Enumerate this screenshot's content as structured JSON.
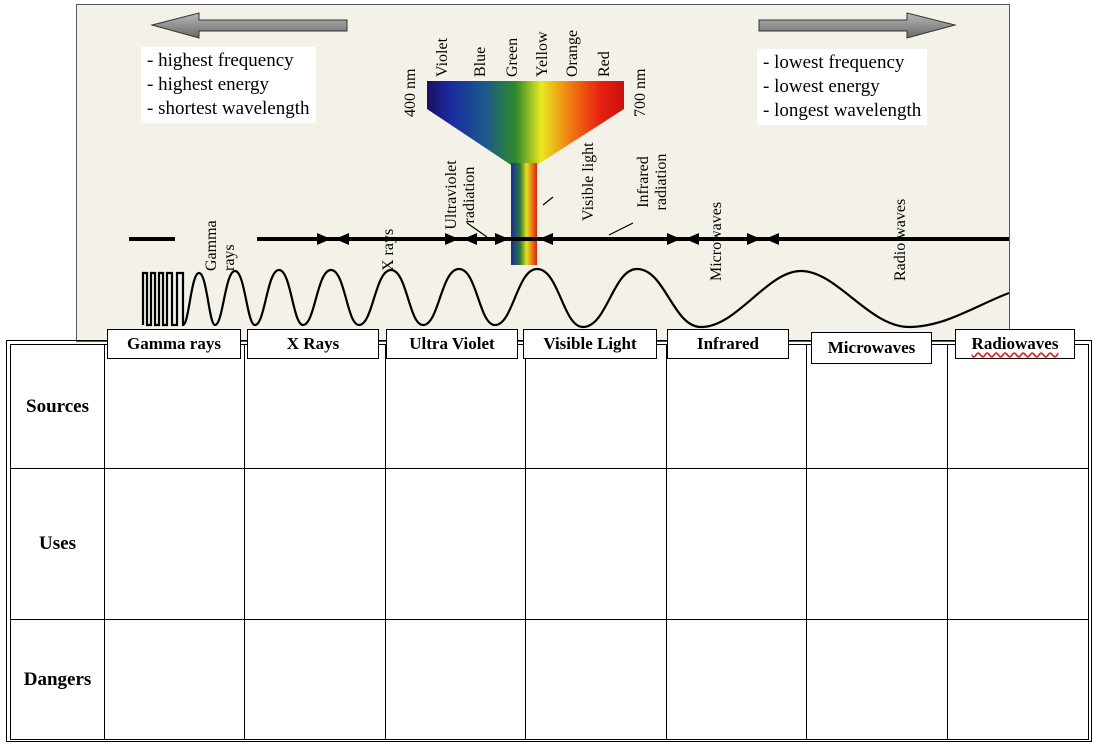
{
  "figure": {
    "left_notes": [
      "- highest frequency",
      "- highest energy",
      "- shortest wavelength"
    ],
    "right_notes": [
      "- lowest frequency",
      "- lowest energy",
      "- longest wavelength"
    ],
    "colors": [
      "Violet",
      "Blue",
      "Green",
      "Yellow",
      "Orange",
      "Red"
    ],
    "wavelength_start": "400 nm",
    "wavelength_end": "700 nm",
    "band_labels": {
      "gamma": "Gamma rays",
      "xrays": "X rays",
      "ultraviolet": "Ultraviolet radiation",
      "visible": "Visible light",
      "infrared": "Infrared radiation",
      "microwaves": "Microwaves",
      "radio": "Radio waves"
    }
  },
  "table": {
    "columns": [
      "Gamma rays",
      "X Rays",
      "Ultra Violet",
      "Visible Light",
      "Infrared",
      "Microwaves",
      "Radiowaves"
    ],
    "rows": [
      "Sources",
      "Uses",
      "Dangers"
    ]
  }
}
